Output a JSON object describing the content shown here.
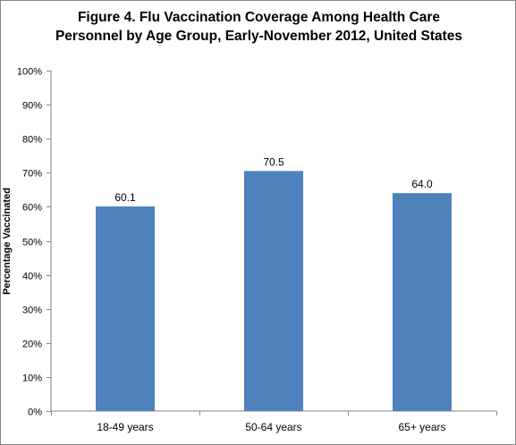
{
  "chart_data": {
    "type": "bar",
    "title_lines": [
      "Figure 4. Flu Vaccination  Coverage Among  Health Care",
      "Personnel by Age Group, Early-November  2012, United States"
    ],
    "xlabel": "",
    "ylabel": "Percentage Vaccinated",
    "categories": [
      "18-49 years",
      "50-64 years",
      "65+ years"
    ],
    "values": [
      60.1,
      70.5,
      64.0
    ],
    "value_labels": [
      "60.1",
      "70.5",
      "64.0"
    ],
    "ylim": [
      0,
      100
    ],
    "yticks": [
      0,
      10,
      20,
      30,
      40,
      50,
      60,
      70,
      80,
      90,
      100
    ],
    "ytick_labels": [
      "0%",
      "10%",
      "20%",
      "30%",
      "40%",
      "50%",
      "60%",
      "70%",
      "80%",
      "90%",
      "100%"
    ],
    "grid": false,
    "legend": "none",
    "bar_color": "#4f81bd",
    "axis_color": "#868686"
  }
}
